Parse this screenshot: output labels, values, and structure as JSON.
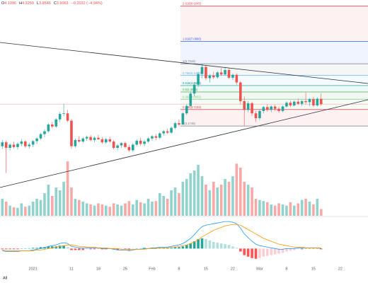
{
  "chart_data": {
    "type": "candlestick",
    "header": {
      "labels": [
        "O",
        "H",
        "L",
        "C"
      ],
      "change": "−0.2032 (−4.94%)"
    },
    "log_scale": true,
    "ylim": [
      1.4,
      10.5
    ],
    "xlim": [
      -0.6,
      95.2
    ],
    "xticks": [
      {
        "value": 8,
        "label": "2021"
      },
      {
        "value": 18,
        "label": "11"
      },
      {
        "value": 25,
        "label": "18"
      },
      {
        "value": 32,
        "label": "25"
      },
      {
        "value": 39,
        "label": "Feb"
      },
      {
        "value": 46,
        "label": "8"
      },
      {
        "value": 53,
        "label": "15"
      },
      {
        "value": 60,
        "label": "22"
      },
      {
        "value": 67,
        "label": "Mar"
      },
      {
        "value": 74,
        "label": "8"
      },
      {
        "value": 81,
        "label": "15"
      },
      {
        "value": 88,
        "label": "22"
      }
    ],
    "up_color": "#26a69a",
    "down_color": "#ef5350",
    "open": [
      2.62,
      2.72,
      2.58,
      2.66,
      2.6,
      2.68,
      2.74,
      2.62,
      2.66,
      2.75,
      2.82,
      2.94,
      3.02,
      3.22,
      3.16,
      3.38,
      3.56,
      3.58,
      3.34,
      2.62,
      2.78,
      2.74,
      2.82,
      2.86,
      2.78,
      2.84,
      2.8,
      2.72,
      2.8,
      2.74,
      2.58,
      2.64,
      2.7,
      2.6,
      2.52,
      2.66,
      2.76,
      2.68,
      2.74,
      2.82,
      2.88,
      2.84,
      2.96,
      3.02,
      2.98,
      3.12,
      3.26,
      3.22,
      3.58,
      3.84,
      4.32,
      4.7,
      5.2,
      5.56,
      5.0,
      5.12,
      5.04,
      5.28,
      5.18,
      5.4,
      5.02,
      5.16,
      4.8,
      4.02,
      3.7,
      3.94,
      3.58,
      3.42,
      3.66,
      3.8,
      3.7,
      3.82,
      3.74,
      3.66,
      3.82,
      3.96,
      3.86,
      4.0,
      3.92,
      4.02,
      3.98,
      4.1,
      3.86,
      4.1096
    ],
    "high": [
      2.78,
      2.76,
      2.7,
      2.74,
      2.72,
      2.8,
      2.78,
      2.7,
      2.78,
      2.86,
      2.98,
      3.08,
      3.26,
      3.3,
      3.42,
      3.62,
      3.92,
      3.7,
      3.4,
      2.82,
      2.88,
      2.86,
      2.9,
      2.92,
      2.88,
      2.92,
      2.86,
      2.84,
      2.86,
      2.78,
      2.68,
      2.72,
      2.74,
      2.66,
      2.7,
      2.8,
      2.84,
      2.78,
      2.86,
      2.92,
      2.94,
      3.0,
      3.06,
      3.1,
      3.16,
      3.3,
      3.38,
      3.62,
      3.9,
      4.4,
      4.8,
      5.3,
      5.73,
      5.66,
      5.2,
      5.3,
      5.34,
      5.5,
      5.56,
      5.48,
      5.22,
      5.24,
      4.86,
      4.2,
      4.02,
      4.0,
      3.66,
      3.72,
      3.84,
      3.9,
      3.86,
      3.88,
      3.82,
      3.86,
      4.02,
      4.04,
      4.04,
      4.12,
      4.06,
      4.36,
      4.14,
      4.18,
      4.16,
      4.3259
    ],
    "low": [
      2.55,
      2.03,
      2.52,
      2.56,
      2.54,
      2.62,
      2.58,
      2.56,
      2.6,
      2.68,
      2.78,
      2.86,
      2.98,
      3.1,
      3.12,
      3.3,
      3.48,
      3.3,
      2.56,
      2.58,
      2.7,
      2.7,
      2.76,
      2.74,
      2.72,
      2.78,
      2.68,
      2.68,
      2.7,
      2.54,
      2.52,
      2.58,
      2.56,
      2.48,
      2.48,
      2.62,
      2.64,
      2.62,
      2.7,
      2.76,
      2.78,
      2.8,
      2.9,
      2.94,
      2.94,
      3.08,
      3.16,
      3.2,
      3.52,
      3.8,
      4.2,
      4.6,
      5.0,
      4.9,
      4.8,
      4.96,
      4.98,
      5.1,
      5.12,
      4.96,
      4.92,
      4.7,
      3.9,
      3.18,
      3.62,
      3.5,
      3.3,
      3.36,
      3.58,
      3.64,
      3.62,
      3.66,
      3.6,
      3.62,
      3.78,
      3.8,
      3.82,
      3.88,
      3.84,
      3.9,
      3.84,
      3.8,
      3.82,
      3.8546
    ],
    "close": [
      2.72,
      2.58,
      2.66,
      2.6,
      2.68,
      2.74,
      2.62,
      2.66,
      2.75,
      2.82,
      2.94,
      3.02,
      3.22,
      3.16,
      3.38,
      3.56,
      3.58,
      3.34,
      2.62,
      2.78,
      2.74,
      2.82,
      2.86,
      2.78,
      2.84,
      2.8,
      2.72,
      2.8,
      2.74,
      2.58,
      2.64,
      2.7,
      2.6,
      2.52,
      2.66,
      2.76,
      2.68,
      2.74,
      2.82,
      2.88,
      2.84,
      2.96,
      3.02,
      2.98,
      3.12,
      3.26,
      3.22,
      3.58,
      3.84,
      4.32,
      4.7,
      5.2,
      5.56,
      5.0,
      5.12,
      5.04,
      5.28,
      5.18,
      5.4,
      5.02,
      5.16,
      4.8,
      4.02,
      3.7,
      3.94,
      3.58,
      3.42,
      3.66,
      3.8,
      3.7,
      3.82,
      3.74,
      3.66,
      3.82,
      3.96,
      3.86,
      4.0,
      3.92,
      4.02,
      3.98,
      4.1,
      3.86,
      4.11,
      3.9063
    ],
    "fib_levels": [
      {
        "value": 9.9245,
        "label": "2.618(9.9245)",
        "color": "#f23645"
      },
      {
        "value": 7.089,
        "label": "1.618(7.0890)",
        "color": "#2962ff"
      },
      {
        "value": 5.7318,
        "label": "1(5.7318)",
        "color": "#787b86"
      },
      {
        "value": 5.1297,
        "label": "0.786(5.1297)",
        "color": "#64b5f6"
      },
      {
        "value": 4.6598,
        "label": "0.618(4.6598)",
        "color": "#089981"
      },
      {
        "value": 4.3845,
        "label": "0.5(4.3845)",
        "color": "#4caf50"
      },
      {
        "value": 4.0932,
        "label": "0.382(4.0932)",
        "color": "#81c784"
      },
      {
        "value": 3.7134,
        "label": "0.236(3.7134)",
        "color": "#f23645"
      },
      {
        "value": 3.1745,
        "label": "0(3.1745)",
        "color": "#787b86"
      }
    ],
    "volume": {
      "ylim": [
        0,
        100
      ],
      "values": [
        30,
        25,
        18,
        15,
        14,
        22,
        16,
        18,
        25,
        30,
        28,
        40,
        55,
        35,
        50,
        45,
        60,
        96,
        50,
        30,
        28,
        25,
        22,
        20,
        18,
        22,
        20,
        18,
        16,
        22,
        20,
        18,
        22,
        26,
        20,
        28,
        24,
        22,
        30,
        25,
        26,
        40,
        35,
        30,
        45,
        50,
        40,
        60,
        65,
        75,
        80,
        90,
        70,
        55,
        45,
        60,
        50,
        55,
        65,
        60,
        70,
        92,
        85,
        60,
        55,
        50,
        30,
        28,
        26,
        24,
        20,
        18,
        22,
        20,
        18,
        24,
        18,
        22,
        28,
        30,
        25,
        20,
        30,
        12
      ]
    },
    "macd": {
      "ylim": [
        -0.2,
        0.4
      ],
      "macd": {
        "color": "#2196f3",
        "values": [
          -0.03,
          -0.04,
          -0.04,
          -0.04,
          -0.04,
          -0.03,
          -0.03,
          -0.03,
          -0.02,
          -0.01,
          0.0,
          0.01,
          0.03,
          0.04,
          0.05,
          0.07,
          0.08,
          0.07,
          0.03,
          0.02,
          0.01,
          0.01,
          0.01,
          0.01,
          0.01,
          0.01,
          0.0,
          0.0,
          0.0,
          -0.01,
          -0.02,
          -0.02,
          -0.02,
          -0.03,
          -0.02,
          -0.01,
          -0.01,
          0.0,
          0.0,
          0.01,
          0.01,
          0.02,
          0.02,
          0.02,
          0.03,
          0.04,
          0.05,
          0.07,
          0.1,
          0.14,
          0.19,
          0.25,
          0.3,
          0.32,
          0.33,
          0.34,
          0.35,
          0.36,
          0.37,
          0.37,
          0.36,
          0.34,
          0.28,
          0.2,
          0.15,
          0.1,
          0.06,
          0.04,
          0.03,
          0.02,
          0.01,
          0.0,
          -0.01,
          -0.01,
          0.0,
          0.0,
          0.0,
          0.01,
          0.01,
          0.01,
          0.01,
          0.01,
          0.01,
          0.0
        ]
      },
      "signal": {
        "color": "#ff9800",
        "values": [
          -0.02,
          -0.03,
          -0.03,
          -0.03,
          -0.03,
          -0.03,
          -0.03,
          -0.03,
          -0.03,
          -0.02,
          -0.02,
          -0.01,
          0.0,
          0.01,
          0.02,
          0.03,
          0.04,
          0.05,
          0.05,
          0.04,
          0.03,
          0.03,
          0.02,
          0.02,
          0.02,
          0.01,
          0.01,
          0.01,
          0.0,
          0.0,
          0.0,
          -0.01,
          -0.01,
          -0.01,
          -0.01,
          -0.01,
          -0.01,
          -0.01,
          0.0,
          0.0,
          0.0,
          0.01,
          0.01,
          0.01,
          0.02,
          0.02,
          0.03,
          0.04,
          0.05,
          0.07,
          0.09,
          0.12,
          0.16,
          0.19,
          0.22,
          0.25,
          0.27,
          0.29,
          0.31,
          0.32,
          0.33,
          0.33,
          0.32,
          0.29,
          0.26,
          0.23,
          0.2,
          0.17,
          0.14,
          0.12,
          0.1,
          0.08,
          0.06,
          0.05,
          0.04,
          0.03,
          0.02,
          0.02,
          0.02,
          0.01,
          0.01,
          0.01,
          0.01,
          0.01
        ]
      },
      "histogram": {
        "values": [
          -0.01,
          -0.01,
          -0.01,
          -0.01,
          -0.01,
          0.0,
          0.0,
          0.0,
          0.01,
          0.01,
          0.02,
          0.02,
          0.03,
          0.03,
          0.03,
          0.04,
          0.04,
          0.02,
          -0.02,
          -0.02,
          -0.02,
          -0.02,
          -0.01,
          -0.01,
          -0.01,
          0.0,
          -0.01,
          -0.01,
          0.0,
          -0.01,
          -0.02,
          -0.01,
          -0.01,
          -0.02,
          -0.01,
          0.0,
          0.0,
          0.01,
          0.0,
          0.01,
          0.01,
          0.01,
          0.01,
          0.01,
          0.01,
          0.02,
          0.02,
          0.03,
          0.05,
          0.07,
          0.1,
          0.13,
          0.14,
          0.13,
          0.11,
          0.09,
          0.08,
          0.07,
          0.06,
          0.05,
          0.03,
          0.01,
          -0.04,
          -0.09,
          -0.11,
          -0.13,
          -0.14,
          -0.13,
          -0.11,
          -0.1,
          -0.09,
          -0.08,
          -0.07,
          -0.06,
          -0.04,
          -0.03,
          -0.02,
          -0.01,
          -0.01,
          0.0,
          0.0,
          0.0,
          0.0,
          -0.01
        ]
      }
    },
    "footer": "All"
  }
}
